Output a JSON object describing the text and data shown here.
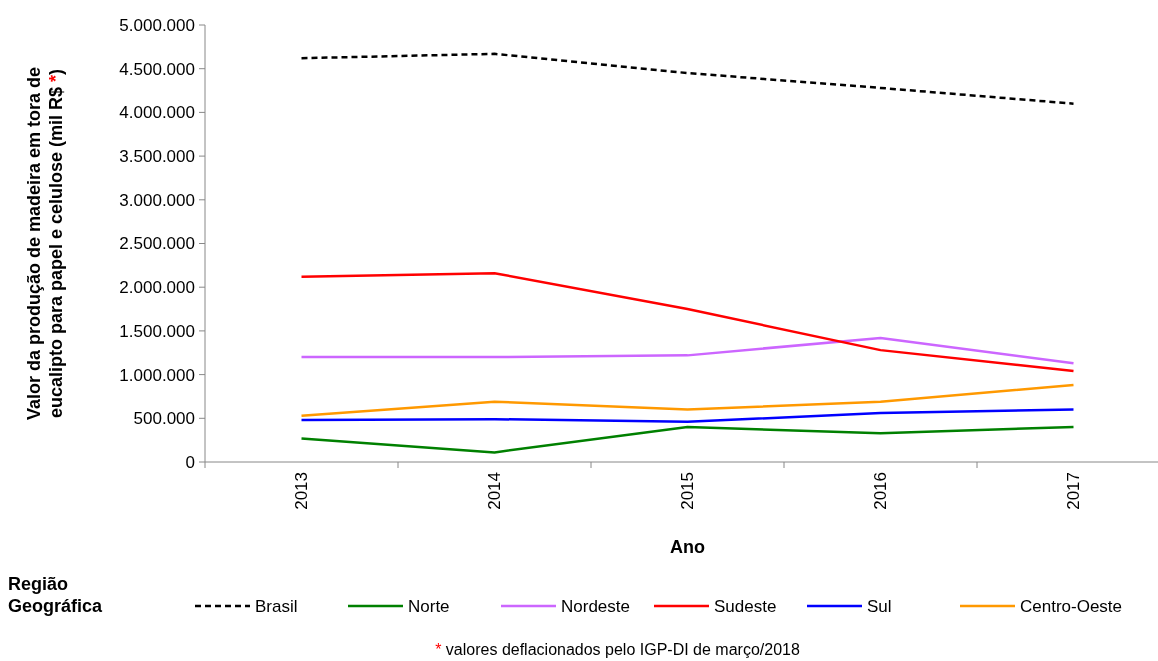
{
  "chart_data": {
    "type": "line",
    "xlabel": "Ano",
    "ylabel": "Valor da produção de madeira em tora de eucalipto para papel e celulose (mil R$ *)",
    "legend_title": "Região Geográfica",
    "legend": "bottom",
    "categories": [
      "2013",
      "2014",
      "2015",
      "2016",
      "2017"
    ],
    "ylim": [
      0,
      5000000
    ],
    "yticks": [
      {
        "value": 0,
        "label": "0"
      },
      {
        "value": 500000,
        "label": "500.000"
      },
      {
        "value": 1000000,
        "label": "1.000.000"
      },
      {
        "value": 1500000,
        "label": "1.500.000"
      },
      {
        "value": 2000000,
        "label": "2.000.000"
      },
      {
        "value": 2500000,
        "label": "2.500.000"
      },
      {
        "value": 3000000,
        "label": "3.000.000"
      },
      {
        "value": 3500000,
        "label": "3.500.000"
      },
      {
        "value": 4000000,
        "label": "4.000.000"
      },
      {
        "value": 4500000,
        "label": "4.500.000"
      },
      {
        "value": 5000000,
        "label": "5.000.000"
      }
    ],
    "series": [
      {
        "name": "Brasil",
        "color": "#000000",
        "line_style": "dashed",
        "values": [
          4620000,
          4670000,
          4450000,
          4280000,
          4100000
        ]
      },
      {
        "name": "Norte",
        "color": "#008000",
        "values": [
          270000,
          110000,
          400000,
          330000,
          400000
        ]
      },
      {
        "name": "Nordeste",
        "color": "#cc66ff",
        "values": [
          1200000,
          1200000,
          1220000,
          1420000,
          1130000
        ]
      },
      {
        "name": "Sudeste",
        "color": "#ff0000",
        "values": [
          2120000,
          2160000,
          1750000,
          1280000,
          1040000
        ]
      },
      {
        "name": "Sul",
        "color": "#0000ff",
        "values": [
          480000,
          490000,
          460000,
          560000,
          600000
        ]
      },
      {
        "name": "Centro-Oeste",
        "color": "#ff9900",
        "values": [
          530000,
          690000,
          600000,
          690000,
          880000
        ]
      }
    ],
    "annotations": [
      "* valores deflacionados pelo IGP-DI de março/2018"
    ]
  }
}
